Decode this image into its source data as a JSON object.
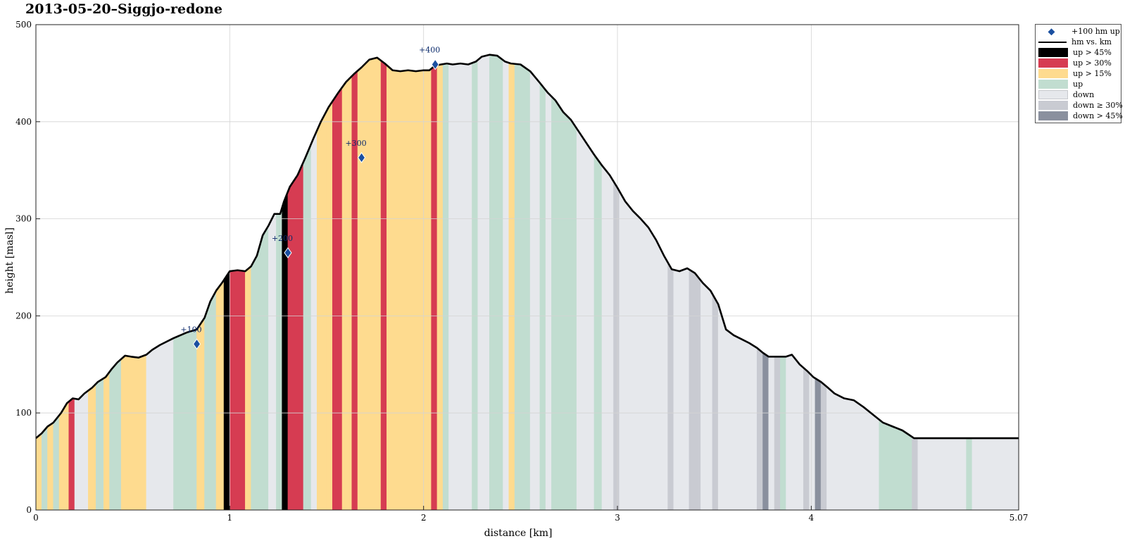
{
  "title": "2013-05-20–Siggjo-redone",
  "chart_data": {
    "type": "area",
    "title": "2013-05-20–Siggjo-redone",
    "xlabel": "distance [km]",
    "ylabel": "height [masl]",
    "xlim": [
      0,
      5.07
    ],
    "ylim": [
      0,
      500
    ],
    "xticks": [
      0,
      1,
      2,
      3,
      4,
      5.07
    ],
    "xtick_labels": [
      "0",
      "1",
      "2",
      "3",
      "4",
      "5.07"
    ],
    "yticks": [
      0,
      100,
      200,
      300,
      400,
      500
    ],
    "grid": true,
    "legend_position": "outside-top-right",
    "profile": {
      "name": "hm vs. km",
      "x": [
        0,
        0.03,
        0.06,
        0.09,
        0.13,
        0.16,
        0.19,
        0.22,
        0.25,
        0.29,
        0.32,
        0.36,
        0.39,
        0.42,
        0.46,
        0.49,
        0.53,
        0.57,
        0.6,
        0.64,
        0.71,
        0.78,
        0.83,
        0.87,
        0.9,
        0.93,
        0.96,
        1.0,
        1.04,
        1.08,
        1.11,
        1.14,
        1.17,
        1.2,
        1.23,
        1.26,
        1.28,
        1.31,
        1.35,
        1.39,
        1.43,
        1.47,
        1.51,
        1.56,
        1.6,
        1.64,
        1.68,
        1.72,
        1.76,
        1.8,
        1.84,
        1.88,
        1.92,
        1.96,
        2.0,
        2.03,
        2.06,
        2.09,
        2.12,
        2.15,
        2.19,
        2.23,
        2.27,
        2.3,
        2.34,
        2.38,
        2.42,
        2.45,
        2.5,
        2.55,
        2.6,
        2.64,
        2.68,
        2.72,
        2.76,
        2.8,
        2.84,
        2.88,
        2.92,
        2.96,
        3.0,
        3.04,
        3.08,
        3.12,
        3.16,
        3.2,
        3.24,
        3.28,
        3.32,
        3.36,
        3.4,
        3.44,
        3.48,
        3.52,
        3.56,
        3.6,
        3.64,
        3.68,
        3.72,
        3.75,
        3.78,
        3.8,
        3.83,
        3.87,
        3.9,
        3.94,
        3.98,
        4.01,
        4.05,
        4.08,
        4.12,
        4.17,
        4.22,
        4.27,
        4.32,
        4.37,
        4.42,
        4.47,
        4.5,
        4.53,
        4.58,
        4.63,
        4.67,
        4.71,
        4.75,
        4.78,
        4.82,
        4.86,
        4.9,
        4.94,
        4.99,
        5.03,
        5.07
      ],
      "y": [
        74,
        79,
        86,
        90,
        100,
        110,
        115,
        114,
        120,
        126,
        132,
        137,
        145,
        152,
        159,
        158,
        157,
        160,
        165,
        170,
        177,
        183,
        186,
        198,
        215,
        226,
        234,
        246,
        247,
        246,
        251,
        262,
        283,
        293,
        305,
        305,
        318,
        333,
        345,
        363,
        382,
        400,
        415,
        430,
        441,
        449,
        456,
        464,
        466,
        460,
        453,
        452,
        453,
        452,
        453,
        453,
        458,
        459,
        460,
        459,
        460,
        459,
        462,
        467,
        469,
        468,
        462,
        460,
        459,
        452,
        440,
        430,
        422,
        410,
        402,
        390,
        378,
        366,
        355,
        345,
        332,
        318,
        308,
        300,
        291,
        278,
        262,
        248,
        246,
        249,
        244,
        234,
        226,
        212,
        186,
        180,
        176,
        172,
        167,
        162,
        158,
        158,
        158,
        158,
        160,
        150,
        143,
        137,
        132,
        127,
        120,
        115,
        113,
        106,
        98,
        90,
        86,
        82,
        78,
        74,
        74,
        74,
        74,
        74,
        74,
        74,
        74,
        74,
        74,
        74,
        74,
        74,
        74
      ],
      "note": "profile as drawn"
    },
    "series": [
      {
        "name": "+100 hm up",
        "x": [
          0.83,
          1.3,
          1.68,
          2.06
        ],
        "y": [
          171,
          265,
          363,
          459
        ],
        "labels": [
          "+100",
          "+200",
          "+300",
          "+400"
        ],
        "color": "#1a4fa0"
      },
      {
        "name": "hm vs. km",
        "color": "#000000"
      }
    ],
    "segments": [
      {
        "x0": 0.0,
        "x1": 0.03,
        "cls": "up15"
      },
      {
        "x0": 0.03,
        "x1": 0.06,
        "cls": "up"
      },
      {
        "x0": 0.06,
        "x1": 0.09,
        "cls": "up15"
      },
      {
        "x0": 0.09,
        "x1": 0.12,
        "cls": "up"
      },
      {
        "x0": 0.12,
        "x1": 0.17,
        "cls": "up15"
      },
      {
        "x0": 0.17,
        "x1": 0.2,
        "cls": "up30"
      },
      {
        "x0": 0.2,
        "x1": 0.22,
        "cls": "down"
      },
      {
        "x0": 0.22,
        "x1": 0.27,
        "cls": "down"
      },
      {
        "x0": 0.27,
        "x1": 0.31,
        "cls": "up15"
      },
      {
        "x0": 0.31,
        "x1": 0.35,
        "cls": "up"
      },
      {
        "x0": 0.35,
        "x1": 0.38,
        "cls": "up15"
      },
      {
        "x0": 0.38,
        "x1": 0.44,
        "cls": "up"
      },
      {
        "x0": 0.44,
        "x1": 0.57,
        "cls": "up15"
      },
      {
        "x0": 0.57,
        "x1": 0.71,
        "cls": "down"
      },
      {
        "x0": 0.71,
        "x1": 0.83,
        "cls": "up"
      },
      {
        "x0": 0.83,
        "x1": 0.87,
        "cls": "up15"
      },
      {
        "x0": 0.87,
        "x1": 0.93,
        "cls": "up"
      },
      {
        "x0": 0.93,
        "x1": 0.97,
        "cls": "up15"
      },
      {
        "x0": 0.97,
        "x1": 1.0,
        "cls": "up45"
      },
      {
        "x0": 1.0,
        "x1": 1.08,
        "cls": "up30"
      },
      {
        "x0": 1.08,
        "x1": 1.11,
        "cls": "up15"
      },
      {
        "x0": 1.11,
        "x1": 1.14,
        "cls": "up"
      },
      {
        "x0": 1.14,
        "x1": 1.2,
        "cls": "up"
      },
      {
        "x0": 1.2,
        "x1": 1.24,
        "cls": "down"
      },
      {
        "x0": 1.24,
        "x1": 1.27,
        "cls": "up"
      },
      {
        "x0": 1.27,
        "x1": 1.3,
        "cls": "up45"
      },
      {
        "x0": 1.3,
        "x1": 1.38,
        "cls": "up30"
      },
      {
        "x0": 1.38,
        "x1": 1.42,
        "cls": "up"
      },
      {
        "x0": 1.42,
        "x1": 1.45,
        "cls": "down"
      },
      {
        "x0": 1.45,
        "x1": 1.5,
        "cls": "up15"
      },
      {
        "x0": 1.5,
        "x1": 1.53,
        "cls": "up15"
      },
      {
        "x0": 1.53,
        "x1": 1.58,
        "cls": "up30"
      },
      {
        "x0": 1.58,
        "x1": 1.63,
        "cls": "up15"
      },
      {
        "x0": 1.63,
        "x1": 1.66,
        "cls": "up30"
      },
      {
        "x0": 1.66,
        "x1": 1.78,
        "cls": "up15"
      },
      {
        "x0": 1.78,
        "x1": 1.81,
        "cls": "up30"
      },
      {
        "x0": 1.81,
        "x1": 2.04,
        "cls": "up15"
      },
      {
        "x0": 2.04,
        "x1": 2.07,
        "cls": "up30"
      },
      {
        "x0": 2.07,
        "x1": 2.1,
        "cls": "up15"
      },
      {
        "x0": 2.1,
        "x1": 2.13,
        "cls": "up"
      },
      {
        "x0": 2.13,
        "x1": 2.25,
        "cls": "down"
      },
      {
        "x0": 2.25,
        "x1": 2.28,
        "cls": "up"
      },
      {
        "x0": 2.28,
        "x1": 2.34,
        "cls": "down"
      },
      {
        "x0": 2.34,
        "x1": 2.41,
        "cls": "up"
      },
      {
        "x0": 2.41,
        "x1": 2.44,
        "cls": "down"
      },
      {
        "x0": 2.44,
        "x1": 2.47,
        "cls": "up15"
      },
      {
        "x0": 2.47,
        "x1": 2.55,
        "cls": "up"
      },
      {
        "x0": 2.55,
        "x1": 2.6,
        "cls": "down"
      },
      {
        "x0": 2.6,
        "x1": 2.63,
        "cls": "up"
      },
      {
        "x0": 2.63,
        "x1": 2.66,
        "cls": "down"
      },
      {
        "x0": 2.66,
        "x1": 2.79,
        "cls": "up"
      },
      {
        "x0": 2.79,
        "x1": 2.88,
        "cls": "down"
      },
      {
        "x0": 2.88,
        "x1": 2.92,
        "cls": "up"
      },
      {
        "x0": 2.92,
        "x1": 2.98,
        "cls": "down"
      },
      {
        "x0": 2.98,
        "x1": 3.01,
        "cls": "down30"
      },
      {
        "x0": 3.01,
        "x1": 3.26,
        "cls": "down"
      },
      {
        "x0": 3.26,
        "x1": 3.29,
        "cls": "down30"
      },
      {
        "x0": 3.29,
        "x1": 3.37,
        "cls": "down"
      },
      {
        "x0": 3.37,
        "x1": 3.43,
        "cls": "down30"
      },
      {
        "x0": 3.43,
        "x1": 3.49,
        "cls": "down"
      },
      {
        "x0": 3.49,
        "x1": 3.52,
        "cls": "down30"
      },
      {
        "x0": 3.52,
        "x1": 3.72,
        "cls": "down"
      },
      {
        "x0": 3.72,
        "x1": 3.75,
        "cls": "down30"
      },
      {
        "x0": 3.75,
        "x1": 3.78,
        "cls": "down45"
      },
      {
        "x0": 3.78,
        "x1": 3.81,
        "cls": "down"
      },
      {
        "x0": 3.81,
        "x1": 3.84,
        "cls": "down30"
      },
      {
        "x0": 3.84,
        "x1": 3.87,
        "cls": "up"
      },
      {
        "x0": 3.87,
        "x1": 3.96,
        "cls": "down"
      },
      {
        "x0": 3.96,
        "x1": 3.99,
        "cls": "down30"
      },
      {
        "x0": 3.99,
        "x1": 4.02,
        "cls": "down"
      },
      {
        "x0": 4.02,
        "x1": 4.05,
        "cls": "down45"
      },
      {
        "x0": 4.05,
        "x1": 4.08,
        "cls": "down30"
      },
      {
        "x0": 4.08,
        "x1": 4.35,
        "cls": "down"
      },
      {
        "x0": 4.35,
        "x1": 4.52,
        "cls": "up"
      },
      {
        "x0": 4.52,
        "x1": 4.55,
        "cls": "down30"
      },
      {
        "x0": 4.55,
        "x1": 4.8,
        "cls": "down"
      },
      {
        "x0": 4.8,
        "x1": 4.83,
        "cls": "up"
      },
      {
        "x0": 4.83,
        "x1": 5.07,
        "cls": "down"
      }
    ]
  },
  "legend": {
    "entries": [
      {
        "key": "marker",
        "label": "+100 hm up",
        "kind": "marker",
        "color": "#1a4fa0"
      },
      {
        "key": "line",
        "label": "hm vs. km",
        "kind": "line",
        "color": "#000000"
      },
      {
        "key": "up45",
        "label": "up > 45%",
        "kind": "patch",
        "color": "#000000"
      },
      {
        "key": "up30",
        "label": "up > 30%",
        "kind": "patch",
        "color": "#d63c52"
      },
      {
        "key": "up15",
        "label": "up > 15%",
        "kind": "patch",
        "color": "#fedb8f"
      },
      {
        "key": "up",
        "label": "up",
        "kind": "patch",
        "color": "#c1ddd0"
      },
      {
        "key": "down",
        "label": "down",
        "kind": "patch",
        "color": "#e6e8ec"
      },
      {
        "key": "down30",
        "label": "down ≥ 30%",
        "kind": "patch",
        "color": "#c9cbd2"
      },
      {
        "key": "down45",
        "label": "down > 45%",
        "kind": "patch",
        "color": "#8a909e"
      }
    ]
  }
}
